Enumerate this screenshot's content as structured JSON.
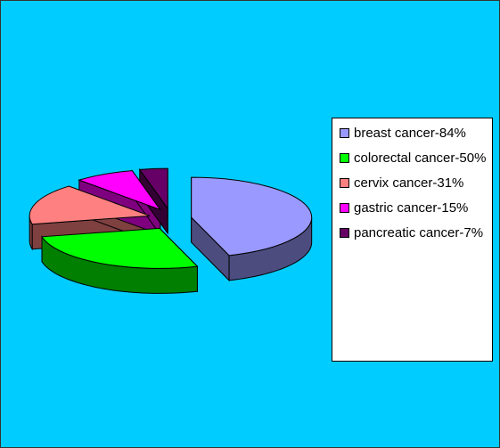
{
  "chart_data": {
    "type": "pie",
    "labels": [
      "breast cancer-84%",
      "colorectal cancer-50%",
      "cervix cancer-31%",
      "gastric cancer-15%",
      "pancreatic cancer-7%"
    ],
    "values": [
      84,
      50,
      31,
      15,
      7
    ],
    "colors": [
      "#9999ff",
      "#00ff00",
      "#ff8080",
      "#ff00ff",
      "#660066"
    ],
    "legend": "right"
  }
}
